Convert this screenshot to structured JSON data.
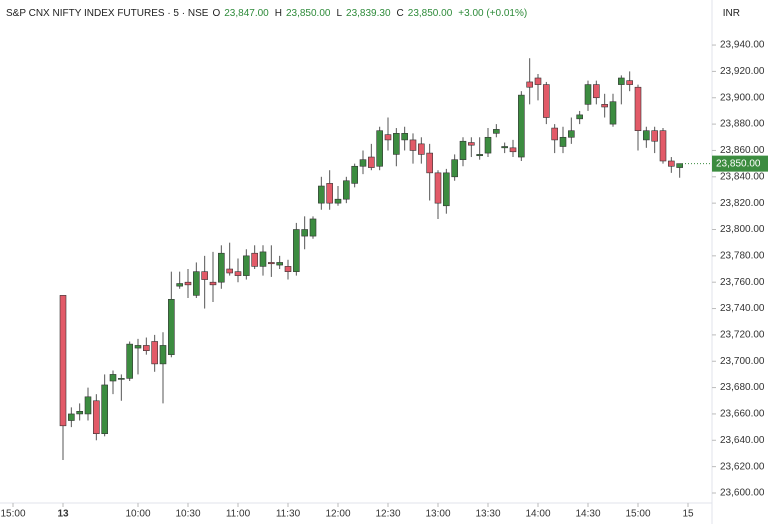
{
  "header": {
    "title": "S&P CNX NIFTY INDEX FUTURES · 5 · NSE",
    "ohlc": [
      {
        "key": "O",
        "value": "23,847.00"
      },
      {
        "key": "H",
        "value": "23,850.00"
      },
      {
        "key": "L",
        "value": "23,839.30"
      },
      {
        "key": "C",
        "value": "23,850.00"
      }
    ],
    "change": "+3.00 (+0.01%)",
    "currency": "INR"
  },
  "chart_data": {
    "type": "candlestick",
    "up_color": "#3c8c40",
    "down_color": "#e25a68",
    "ylim": [
      23592.4,
      23974.2
    ],
    "yticks": [
      {
        "value": 23940,
        "label": "23,940.00"
      },
      {
        "value": 23920,
        "label": "23,920.00"
      },
      {
        "value": 23900,
        "label": "23,900.00"
      },
      {
        "value": 23880,
        "label": "23,880.00"
      },
      {
        "value": 23860,
        "label": "23,860.00"
      },
      {
        "value": 23840,
        "label": "23,840.00"
      },
      {
        "value": 23820,
        "label": "23,820.00"
      },
      {
        "value": 23800,
        "label": "23,800.00"
      },
      {
        "value": 23780,
        "label": "23,780.00"
      },
      {
        "value": 23760,
        "label": "23,760.00"
      },
      {
        "value": 23740,
        "label": "23,740.00"
      },
      {
        "value": 23720,
        "label": "23,720.00"
      },
      {
        "value": 23700,
        "label": "23,700.00"
      },
      {
        "value": 23680,
        "label": "23,680.00"
      },
      {
        "value": 23660,
        "label": "23,660.00"
      },
      {
        "value": 23640,
        "label": "23,640.00"
      },
      {
        "value": 23620,
        "label": "23,620.00"
      },
      {
        "value": 23600,
        "label": "23,600.00"
      }
    ],
    "xlim": [
      -7.56,
      77.88
    ],
    "xticks": [
      {
        "value": -6,
        "label": "15:00"
      },
      {
        "value": 0,
        "label": "13"
      },
      {
        "value": 9,
        "label": "10:00"
      },
      {
        "value": 15,
        "label": "10:30"
      },
      {
        "value": 21,
        "label": "11:00"
      },
      {
        "value": 27,
        "label": "11:30"
      },
      {
        "value": 33,
        "label": "12:00"
      },
      {
        "value": 39,
        "label": "12:30"
      },
      {
        "value": 45,
        "label": "13:00"
      },
      {
        "value": 51,
        "label": "13:30"
      },
      {
        "value": 57,
        "label": "14:00"
      },
      {
        "value": 63,
        "label": "14:30"
      },
      {
        "value": 69,
        "label": "15:00"
      },
      {
        "value": 75,
        "label": "15"
      }
    ],
    "last_price": {
      "value": 23850,
      "label": "23,850.00"
    },
    "open": [
      23750,
      23655,
      23660,
      23660,
      23670,
      23645,
      23685,
      23687,
      23687,
      23710,
      23712,
      23715,
      23698,
      23705,
      23757,
      23760,
      23750,
      23768,
      23760,
      23760,
      23770,
      23768,
      23765,
      23782,
      23772,
      23775,
      23773,
      23772,
      23768,
      23795,
      23795,
      23820,
      23835,
      23820,
      23823,
      23835,
      23848,
      23855,
      23848,
      23872,
      23857,
      23868,
      23868,
      23865,
      23858,
      23843,
      23818,
      23840,
      23853,
      23866,
      23856,
      23858,
      23873,
      23862,
      23862,
      23855,
      23912,
      23915,
      23910,
      23877,
      23863,
      23870,
      23884,
      23895,
      23910,
      23895,
      23880,
      23910,
      23913,
      23908,
      23868,
      23875,
      23875,
      23852,
      23847
    ],
    "high": [
      23750,
      23665,
      23668,
      23680,
      23675,
      23690,
      23693,
      23690,
      23715,
      23717,
      23718,
      23720,
      23722,
      23768,
      23768,
      23770,
      23775,
      23780,
      23783,
      23788,
      23790,
      23778,
      23785,
      23788,
      23788,
      23788,
      23780,
      23777,
      23805,
      23810,
      23810,
      23840,
      23845,
      23833,
      23840,
      23850,
      23860,
      23865,
      23878,
      23885,
      23877,
      23878,
      23873,
      23870,
      23865,
      23845,
      23846,
      23857,
      23870,
      23870,
      23870,
      23877,
      23880,
      23866,
      23868,
      23905,
      23930,
      23918,
      23912,
      23880,
      23878,
      23885,
      23890,
      23913,
      23913,
      23903,
      23903,
      23917,
      23920,
      23910,
      23878,
      23878,
      23877,
      23855,
      23850
    ],
    "low": [
      23625,
      23650,
      23655,
      23655,
      23640,
      23643,
      23675,
      23670,
      23685,
      23690,
      23705,
      23692,
      23668,
      23703,
      23755,
      23748,
      23748,
      23740,
      23745,
      23755,
      23765,
      23760,
      23762,
      23770,
      23765,
      23764,
      23770,
      23762,
      23765,
      23785,
      23793,
      23815,
      23815,
      23818,
      23820,
      23832,
      23842,
      23845,
      23845,
      23860,
      23848,
      23860,
      23850,
      23850,
      23822,
      23808,
      23812,
      23837,
      23848,
      23855,
      23853,
      23855,
      23870,
      23858,
      23855,
      23852,
      23895,
      23898,
      23880,
      23858,
      23858,
      23865,
      23880,
      23890,
      23895,
      23885,
      23878,
      23895,
      23905,
      23860,
      23862,
      23858,
      23850,
      23843,
      23839.3
    ],
    "close": [
      23651,
      23660,
      23662,
      23673,
      23645,
      23682,
      23690,
      23687,
      23713,
      23712,
      23708,
      23698,
      23712,
      23747,
      23759,
      23758,
      23768,
      23762,
      23758,
      23782,
      23767,
      23765,
      23780,
      23772,
      23783,
      23774,
      23775,
      23768,
      23800,
      23800,
      23808,
      23833,
      23820,
      23823,
      23837,
      23848,
      23853,
      23847,
      23875,
      23868,
      23873,
      23873,
      23860,
      23857,
      23843,
      23820,
      23843,
      23853,
      23867,
      23864,
      23857,
      23870,
      23876,
      23863,
      23859,
      23902,
      23908,
      23910,
      23885,
      23868,
      23870,
      23875,
      23887,
      23910,
      23900,
      23893,
      23897,
      23915,
      23910,
      23875,
      23875,
      23867,
      23852,
      23848,
      23850
    ]
  }
}
